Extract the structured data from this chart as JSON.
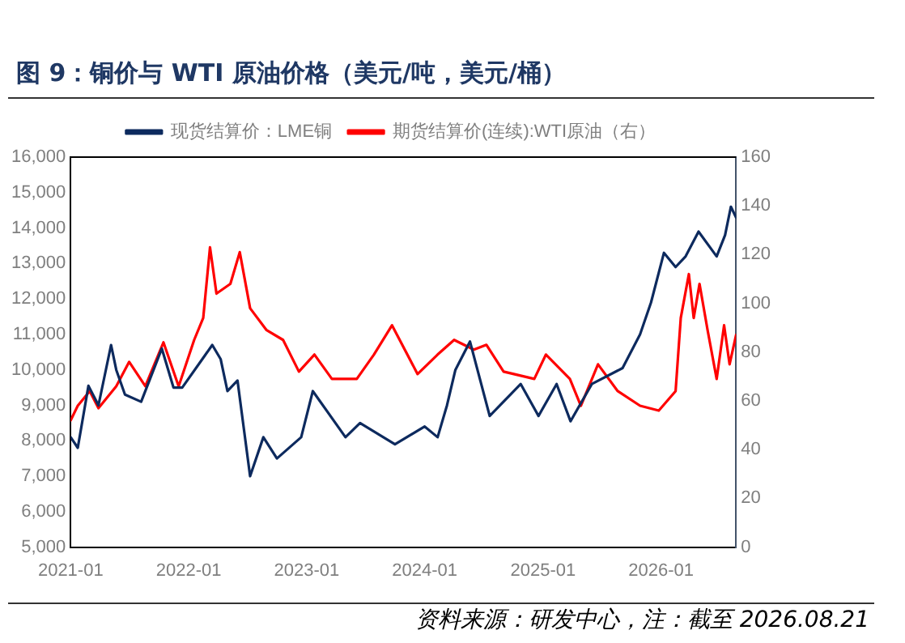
{
  "chart_data": {
    "type": "line",
    "title": "图 9：铜价与 WTI 原油价格（美元/吨，美元/桶）",
    "annotations": [
      "资料来源：研发中心，注：截至 2026.08.21"
    ],
    "xlim": [
      "2021-01-01",
      "2026-08-21"
    ],
    "xticks": [
      {
        "value": "2021-01-01",
        "label": "2021-01"
      },
      {
        "value": "2022-01-01",
        "label": "2022-01"
      },
      {
        "value": "2023-01-01",
        "label": "2023-01"
      },
      {
        "value": "2024-01-01",
        "label": "2024-01"
      },
      {
        "value": "2025-01-01",
        "label": "2025-01"
      },
      {
        "value": "2026-01-01",
        "label": "2026-01"
      }
    ],
    "ylim": [
      5000,
      16000
    ],
    "yticks": [
      {
        "value": 5000,
        "label": "5,000"
      },
      {
        "value": 6000,
        "label": "6,000"
      },
      {
        "value": 7000,
        "label": "7,000"
      },
      {
        "value": 8000,
        "label": "8,000"
      },
      {
        "value": 9000,
        "label": "9,000"
      },
      {
        "value": 10000,
        "label": "10,000"
      },
      {
        "value": 11000,
        "label": "11,000"
      },
      {
        "value": 12000,
        "label": "12,000"
      },
      {
        "value": 13000,
        "label": "13,000"
      },
      {
        "value": 14000,
        "label": "14,000"
      },
      {
        "value": 15000,
        "label": "15,000"
      },
      {
        "value": 16000,
        "label": "16,000"
      }
    ],
    "y2lim": [
      0,
      160
    ],
    "y2ticks": [
      0,
      20,
      40,
      60,
      80,
      100,
      120,
      140,
      160
    ],
    "grid": false,
    "legend": "top",
    "marker": "none",
    "line_style": "solid",
    "series": [
      {
        "name": "现货结算价：LME铜",
        "color": "#0d2a5e",
        "x": [
          "2021-01-01",
          "2021-01-23",
          "2021-02-25",
          "2021-03-28",
          "2021-05-06",
          "2021-05-22",
          "2021-06-18",
          "2021-08-07",
          "2021-10-10",
          "2021-11-15",
          "2021-12-12",
          "2022-03-15",
          "2022-04-10",
          "2022-05-01",
          "2022-06-01",
          "2022-07-10",
          "2022-08-20",
          "2022-10-01",
          "2022-12-15",
          "2023-01-20",
          "2023-05-01",
          "2023-06-15",
          "2023-10-01",
          "2024-01-01",
          "2024-02-10",
          "2024-03-10",
          "2024-04-05",
          "2024-05-20",
          "2024-07-20",
          "2024-10-24",
          "2024-12-18",
          "2025-02-12",
          "2025-03-27",
          "2025-06-01",
          "2025-09-04",
          "2025-10-28",
          "2025-12-01",
          "2026-01-10",
          "2026-02-15",
          "2026-03-18",
          "2026-04-27",
          "2026-06-22",
          "2026-07-18",
          "2026-08-05",
          "2026-08-21"
        ],
        "values": [
          8100,
          7800,
          9550,
          9000,
          10700,
          10000,
          9300,
          9100,
          10600,
          9500,
          9500,
          10700,
          10300,
          9400,
          9700,
          7000,
          8100,
          7500,
          8100,
          9400,
          8100,
          8500,
          7900,
          8400,
          8100,
          9000,
          10000,
          10800,
          8700,
          9600,
          8700,
          9600,
          8550,
          9600,
          10050,
          11000,
          11900,
          13300,
          12900,
          13200,
          13900,
          13200,
          13800,
          14600,
          14300
        ]
      },
      {
        "name": "期货结算价(连续):WTI原油（右）",
        "color": "#ff0000",
        "axis": "y2",
        "x": [
          "2021-01-01",
          "2021-01-23",
          "2021-03-01",
          "2021-03-28",
          "2021-05-22",
          "2021-07-01",
          "2021-08-20",
          "2021-10-15",
          "2021-12-01",
          "2022-01-18",
          "2022-02-15",
          "2022-03-08",
          "2022-03-28",
          "2022-05-10",
          "2022-06-08",
          "2022-07-10",
          "2022-08-30",
          "2022-10-20",
          "2022-12-08",
          "2023-01-25",
          "2023-03-20",
          "2023-06-05",
          "2023-07-28",
          "2023-09-22",
          "2023-12-10",
          "2024-02-10",
          "2024-04-01",
          "2024-06-01",
          "2024-07-10",
          "2024-09-01",
          "2024-12-05",
          "2025-01-10",
          "2025-03-25",
          "2025-04-28",
          "2025-06-20",
          "2025-08-20",
          "2025-10-28",
          "2025-12-25",
          "2026-02-15",
          "2026-03-03",
          "2026-03-28",
          "2026-04-12",
          "2026-04-30",
          "2026-05-25",
          "2026-06-22",
          "2026-07-15",
          "2026-08-01",
          "2026-08-21"
        ],
        "values": [
          52,
          58,
          64,
          57,
          66,
          76,
          66,
          84,
          66,
          85,
          94,
          123,
          104,
          108,
          121,
          98,
          89,
          85,
          72,
          79,
          69,
          69,
          79,
          91,
          71,
          79,
          85,
          81,
          83,
          72,
          69,
          79,
          69,
          58,
          75,
          64,
          58,
          56,
          64,
          94,
          112,
          94,
          108,
          89,
          69,
          91,
          75,
          87
        ]
      }
    ]
  }
}
